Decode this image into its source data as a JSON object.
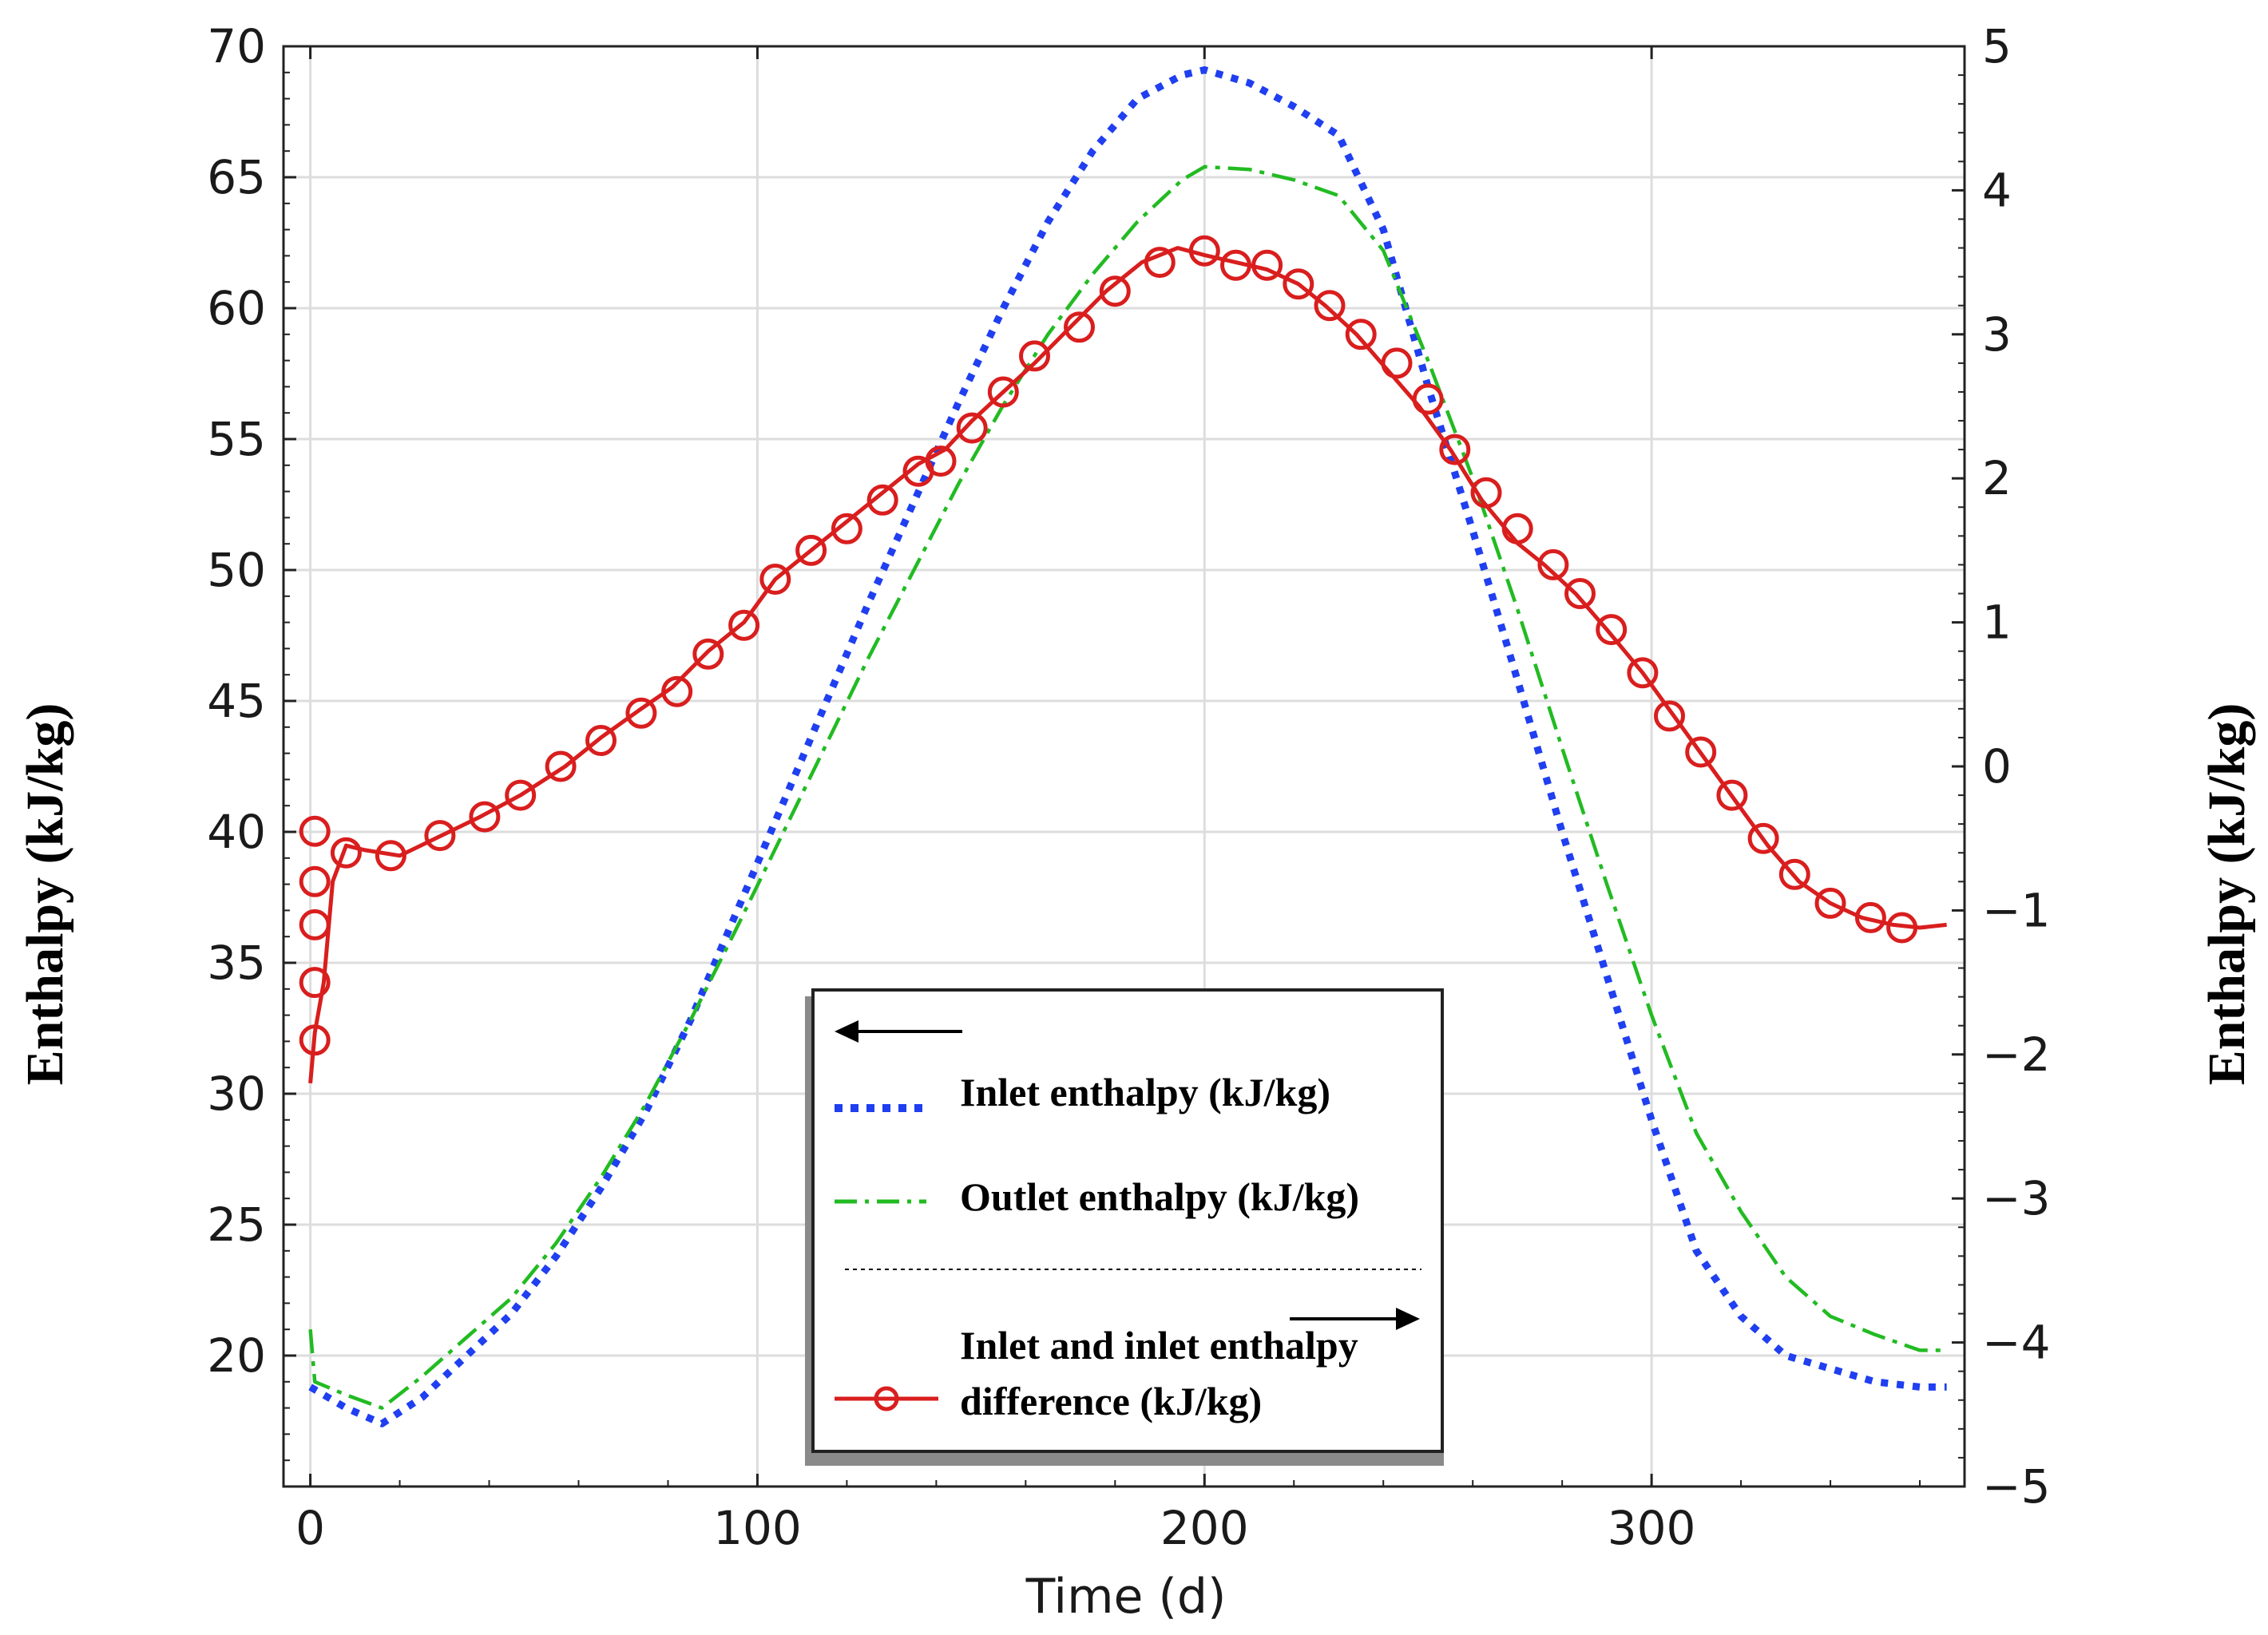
{
  "chart_data": {
    "type": "line",
    "title": "",
    "xlabel": "Time (d)",
    "ylabel_left": "Enthalpy (kJ/kg)",
    "ylabel_right": "Enthalpy (kJ/kg)",
    "xlim": [
      -6,
      370
    ],
    "ylim_left": [
      15,
      70
    ],
    "ylim_right": [
      -5,
      5
    ],
    "xticks": [
      0,
      100,
      200,
      300
    ],
    "xtick_labels": [
      "0",
      "100",
      "200",
      "300"
    ],
    "yticks_left": [
      20,
      25,
      30,
      35,
      40,
      45,
      50,
      55,
      60,
      65,
      70
    ],
    "ytick_labels_left": [
      "20",
      "25",
      "30",
      "35",
      "40",
      "45",
      "50",
      "55",
      "60",
      "65",
      "70"
    ],
    "yticks_right": [
      -5,
      -4,
      -3,
      -2,
      -1,
      0,
      1,
      2,
      3,
      4,
      5
    ],
    "ytick_labels_right": [
      "−5",
      "−4",
      "−3",
      "−2",
      "−1",
      "0",
      "1",
      "2",
      "3",
      "4",
      "5"
    ],
    "grid": true,
    "legend_position": "bottom-center",
    "series": [
      {
        "name": "Inlet enthalpy (kJ/kg)",
        "axis": "left",
        "color": "#1f3ff0",
        "style": "dotted",
        "x": [
          0,
          8,
          16,
          25,
          35,
          45,
          55,
          65,
          75,
          85,
          95,
          105,
          115,
          125,
          135,
          145,
          155,
          165,
          175,
          185,
          195,
          200,
          210,
          220,
          230,
          240,
          250,
          260,
          270,
          280,
          290,
          300,
          310,
          320,
          330,
          340,
          350,
          360,
          366
        ],
        "values": [
          18.8,
          18.0,
          17.4,
          18.4,
          20.0,
          21.6,
          23.8,
          26.4,
          29.3,
          32.8,
          36.8,
          40.8,
          44.8,
          48.8,
          52.6,
          56.4,
          60.0,
          63.3,
          66.0,
          68.0,
          68.9,
          69.1,
          68.6,
          67.7,
          66.6,
          63.0,
          57.0,
          51.5,
          45.8,
          40.0,
          34.5,
          29.0,
          24.0,
          21.5,
          20.0,
          19.5,
          19.0,
          18.8,
          18.8
        ]
      },
      {
        "name": "Outlet enthalpy (kJ/kg)",
        "axis": "left",
        "color": "#22bb22",
        "style": "dashdot",
        "x": [
          0,
          1,
          8,
          16,
          25,
          35,
          45,
          55,
          65,
          75,
          85,
          95,
          105,
          115,
          125,
          135,
          145,
          155,
          165,
          175,
          185,
          195,
          200,
          210,
          220,
          230,
          240,
          250,
          260,
          270,
          280,
          290,
          300,
          310,
          320,
          330,
          340,
          350,
          360,
          366
        ],
        "values": [
          21.0,
          19.0,
          18.5,
          18.0,
          19.2,
          20.7,
          22.2,
          24.3,
          26.8,
          29.6,
          32.8,
          36.2,
          39.7,
          43.2,
          46.7,
          50.0,
          53.3,
          56.3,
          59.0,
          61.3,
          63.3,
          64.9,
          65.4,
          65.3,
          64.9,
          64.3,
          62.2,
          58.0,
          53.5,
          48.5,
          43.2,
          38.0,
          33.0,
          28.5,
          25.5,
          23.0,
          21.5,
          20.8,
          20.2,
          20.2
        ]
      },
      {
        "name": "Inlet and inlet enthalpy difference (kJ/kg)",
        "axis": "right",
        "color": "#d91e1e",
        "style": "solid-circle",
        "x": [
          0,
          1,
          3,
          5,
          8,
          12,
          20,
          28,
          38,
          47,
          57,
          65,
          74,
          81,
          89,
          97,
          104,
          112,
          120,
          128,
          136,
          142,
          148,
          155,
          162,
          170,
          178,
          186,
          194,
          200,
          207,
          214,
          221,
          227,
          234,
          241,
          248,
          255,
          262,
          270,
          276,
          283,
          290,
          298,
          305,
          312,
          319,
          326,
          333,
          340,
          347,
          354,
          360,
          366
        ],
        "values": [
          -2.2,
          -1.85,
          -1.5,
          -0.8,
          -0.55,
          -0.58,
          -0.62,
          -0.5,
          -0.35,
          -0.2,
          0.0,
          0.2,
          0.4,
          0.55,
          0.8,
          1.0,
          1.3,
          1.5,
          1.7,
          1.9,
          2.1,
          2.2,
          2.4,
          2.6,
          2.8,
          3.05,
          3.3,
          3.5,
          3.6,
          3.55,
          3.5,
          3.45,
          3.35,
          3.2,
          3.0,
          2.75,
          2.5,
          2.2,
          1.85,
          1.55,
          1.4,
          1.2,
          0.95,
          0.65,
          0.35,
          0.05,
          -0.25,
          -0.55,
          -0.8,
          -0.95,
          -1.05,
          -1.1,
          -1.12,
          -1.1
        ],
        "marker_x": [
          1,
          1,
          1,
          1,
          1,
          8,
          18,
          29,
          39,
          47,
          56,
          65,
          74,
          82,
          89,
          97,
          104,
          112,
          120,
          128,
          136,
          141,
          148,
          155,
          162,
          172,
          180,
          190,
          200,
          207,
          214,
          221,
          228,
          235,
          243,
          250,
          256,
          263,
          270,
          278,
          284,
          291,
          298,
          304,
          311,
          318,
          325,
          332,
          340,
          349,
          356
        ],
        "marker_values": [
          -1.9,
          -1.5,
          -1.1,
          -0.8,
          -0.45,
          -0.6,
          -0.62,
          -0.48,
          -0.35,
          -0.2,
          0.0,
          0.18,
          0.37,
          0.52,
          0.78,
          0.98,
          1.3,
          1.5,
          1.65,
          1.85,
          2.05,
          2.12,
          2.35,
          2.6,
          2.85,
          3.05,
          3.3,
          3.5,
          3.58,
          3.48,
          3.48,
          3.35,
          3.2,
          3.0,
          2.8,
          2.55,
          2.2,
          1.9,
          1.65,
          1.4,
          1.2,
          0.95,
          0.65,
          0.35,
          0.1,
          -0.2,
          -0.5,
          -0.75,
          -0.95,
          -1.05,
          -1.12
        ]
      }
    ],
    "legend": {
      "arrow_left_label": "",
      "entries": [
        "Inlet enthalpy (kJ/kg)",
        "Outlet enthalpy (kJ/kg)",
        "Inlet and inlet enthalpy"
      ],
      "entry_continuation": "difference (kJ/kg)"
    }
  }
}
